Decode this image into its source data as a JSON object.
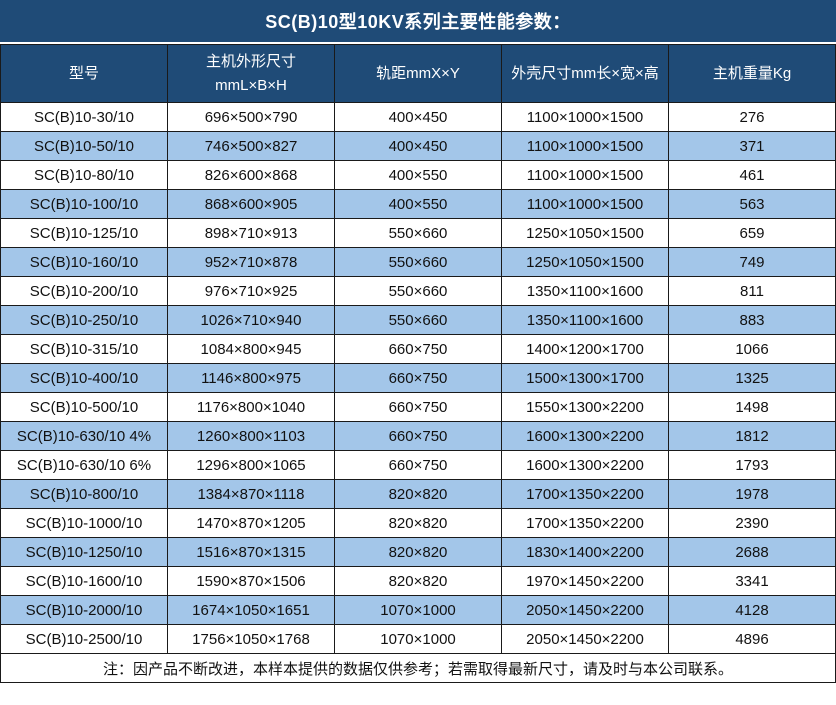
{
  "chart_data": {
    "type": "table",
    "title": "SC(B)10型10KV系列主要性能参数：",
    "columns": [
      "型号",
      "主机外形尺寸\nmmL×B×H",
      "轨距mmX×Y",
      "外壳尺寸mm长×宽×高",
      "主机重量Kg"
    ],
    "rows": [
      [
        "SC(B)10-30/10",
        "696×500×790",
        "400×450",
        "1100×1000×1500",
        "276"
      ],
      [
        "SC(B)10-50/10",
        "746×500×827",
        "400×450",
        "1100×1000×1500",
        "371"
      ],
      [
        "SC(B)10-80/10",
        "826×600×868",
        "400×550",
        "1100×1000×1500",
        "461"
      ],
      [
        "SC(B)10-100/10",
        "868×600×905",
        "400×550",
        "1100×1000×1500",
        "563"
      ],
      [
        "SC(B)10-125/10",
        "898×710×913",
        "550×660",
        "1250×1050×1500",
        "659"
      ],
      [
        "SC(B)10-160/10",
        "952×710×878",
        "550×660",
        "1250×1050×1500",
        "749"
      ],
      [
        "SC(B)10-200/10",
        "976×710×925",
        "550×660",
        "1350×1100×1600",
        "811"
      ],
      [
        "SC(B)10-250/10",
        "1026×710×940",
        "550×660",
        "1350×1100×1600",
        "883"
      ],
      [
        "SC(B)10-315/10",
        "1084×800×945",
        "660×750",
        "1400×1200×1700",
        "1066"
      ],
      [
        "SC(B)10-400/10",
        "1146×800×975",
        "660×750",
        "1500×1300×1700",
        "1325"
      ],
      [
        "SC(B)10-500/10",
        "1176×800×1040",
        "660×750",
        "1550×1300×2200",
        "1498"
      ],
      [
        "SC(B)10-630/10 4%",
        "1260×800×1103",
        "660×750",
        "1600×1300×2200",
        "1812"
      ],
      [
        "SC(B)10-630/10 6%",
        "1296×800×1065",
        "660×750",
        "1600×1300×2200",
        "1793"
      ],
      [
        "SC(B)10-800/10",
        "1384×870×1118",
        "820×820",
        "1700×1350×2200",
        "1978"
      ],
      [
        "SC(B)10-1000/10",
        "1470×870×1205",
        "820×820",
        "1700×1350×2200",
        "2390"
      ],
      [
        "SC(B)10-1250/10",
        "1516×870×1315",
        "820×820",
        "1830×1400×2200",
        "2688"
      ],
      [
        "SC(B)10-1600/10",
        "1590×870×1506",
        "820×820",
        "1970×1450×2200",
        "3341"
      ],
      [
        "SC(B)10-2000/10",
        "1674×1050×1651",
        "1070×1000",
        "2050×1450×2200",
        "4128"
      ],
      [
        "SC(B)10-2500/10",
        "1756×1050×1768",
        "1070×1000",
        "2050×1450×2200",
        "4896"
      ]
    ],
    "note": "注：因产品不断改进，本样本提供的数据仅供参考；若需取得最新尺寸，请及时与本公司联系。",
    "layout": {
      "row_alternating": true,
      "alt_rows_start": 2,
      "legend_position": "none",
      "grid": true
    }
  },
  "colors": {
    "header_bg": "#1F4B77",
    "header_text": "#FFFFFF",
    "row_alt_bg": "#A3C6E9",
    "row_bg": "#FFFFFF",
    "border": "#1A1A1A",
    "cell_text": "#111111"
  }
}
